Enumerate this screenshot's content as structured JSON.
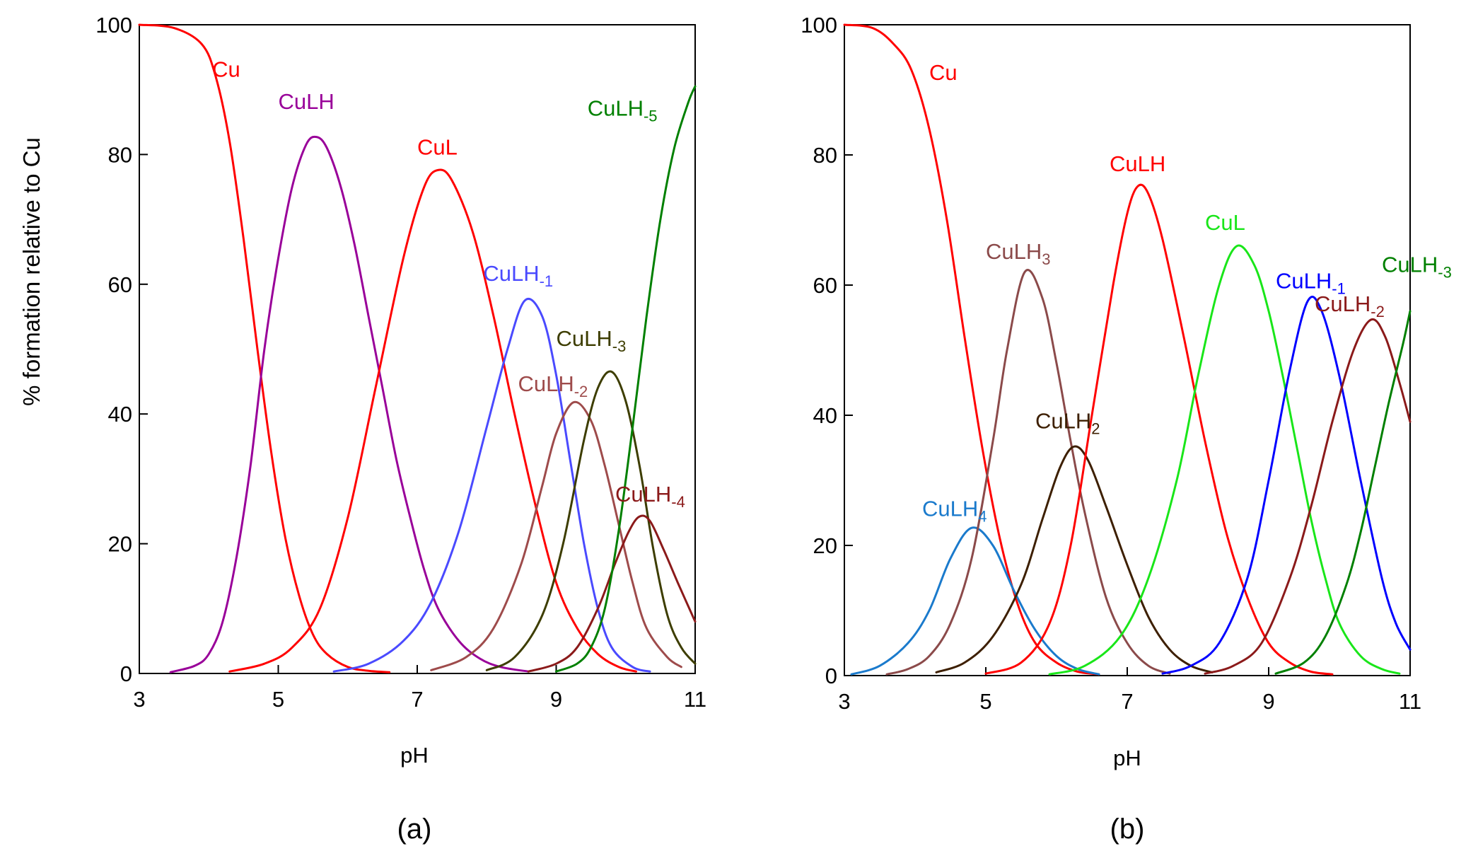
{
  "figure": {
    "y_axis_label": "% formation relative to Cu"
  },
  "chart_data": [
    {
      "type": "line",
      "panel_label": "(a)",
      "xlabel": "pH",
      "ylabel": "% formation relative to Cu",
      "xlim": [
        3,
        11
      ],
      "ylim": [
        0,
        100
      ],
      "xticks": [
        3,
        5,
        7,
        9,
        11
      ],
      "yticks": [
        0,
        20,
        40,
        60,
        80,
        100
      ],
      "grid": false,
      "series": [
        {
          "name": "Cu",
          "label": "Cu",
          "sub": "",
          "color": "#ff0000",
          "label_pos": [
            4.05,
            92
          ],
          "x": [
            3.0,
            3.5,
            3.9,
            4.1,
            4.3,
            4.5,
            4.7,
            4.9,
            5.1,
            5.3,
            5.5,
            5.7,
            6.0,
            6.3,
            6.6
          ],
          "y": [
            100,
            99.5,
            97,
            92,
            82,
            67,
            50,
            34,
            21,
            12,
            6,
            3,
            1,
            0.4,
            0.2
          ]
        },
        {
          "name": "CuLH",
          "label": "CuLH",
          "sub": "",
          "color": "#990099",
          "label_pos": [
            5.0,
            87
          ],
          "x": [
            3.45,
            3.8,
            4.0,
            4.2,
            4.4,
            4.6,
            4.8,
            5.0,
            5.2,
            5.4,
            5.55,
            5.7,
            5.9,
            6.1,
            6.3,
            6.5,
            6.7,
            6.9,
            7.1,
            7.3,
            7.6,
            7.9,
            8.2,
            8.6
          ],
          "y": [
            0.2,
            1.2,
            3,
            8,
            18,
            32,
            50,
            64,
            75,
            81.5,
            82.7,
            81,
            75,
            66,
            55,
            44,
            33,
            24,
            16,
            10,
            5,
            2.3,
            1,
            0.3
          ]
        },
        {
          "name": "CuL",
          "label": "CuL",
          "sub": "",
          "color": "#ff0000",
          "label_pos": [
            7.0,
            80
          ],
          "x": [
            4.3,
            4.8,
            5.2,
            5.6,
            6.0,
            6.4,
            6.8,
            7.1,
            7.3,
            7.5,
            7.8,
            8.1,
            8.4,
            8.7,
            9.0,
            9.3,
            9.6,
            9.9,
            10.15
          ],
          "y": [
            0.3,
            1.5,
            4,
            10,
            24,
            44,
            64,
            75,
            77.6,
            76,
            68,
            55,
            40,
            26,
            14,
            7,
            3,
            1,
            0.3
          ]
        },
        {
          "name": "CuLH-1",
          "label": "CuLH",
          "sub": "-1",
          "color": "#4a4aff",
          "label_pos": [
            7.95,
            60.5
          ],
          "x": [
            5.8,
            6.3,
            6.8,
            7.2,
            7.6,
            8.0,
            8.3,
            8.55,
            8.8,
            9.0,
            9.2,
            9.4,
            9.6,
            9.8,
            10.1,
            10.35
          ],
          "y": [
            0.3,
            1.5,
            5,
            11,
            22,
            38,
            50,
            57.5,
            55,
            46,
            33,
            20,
            10,
            4,
            1,
            0.3
          ]
        },
        {
          "name": "CuLH-2",
          "label": "CuLH",
          "sub": "-2",
          "color": "#9e4b4b",
          "label_pos": [
            8.45,
            43.5
          ],
          "x": [
            7.2,
            7.7,
            8.1,
            8.5,
            8.8,
            9.0,
            9.25,
            9.5,
            9.7,
            9.9,
            10.1,
            10.3,
            10.6,
            10.8
          ],
          "y": [
            0.5,
            2.5,
            7,
            17,
            29,
            37,
            41.8,
            39,
            32,
            23,
            14,
            7,
            2.5,
            1
          ]
        },
        {
          "name": "CuLH-3",
          "label": "CuLH",
          "sub": "-3",
          "color": "#3d3d00",
          "label_pos": [
            9.0,
            50.5
          ],
          "x": [
            8.0,
            8.4,
            8.8,
            9.1,
            9.4,
            9.6,
            9.8,
            10.0,
            10.2,
            10.4,
            10.6,
            10.8,
            11.0
          ],
          "y": [
            0.5,
            2.5,
            9,
            20,
            36,
            44,
            46.5,
            42,
            32,
            19,
            9,
            4,
            1.5
          ]
        },
        {
          "name": "CuLH-4",
          "label": "CuLH",
          "sub": "-4",
          "color": "#8b1a1a",
          "label_pos": [
            9.85,
            26.5
          ],
          "x": [
            8.6,
            9.0,
            9.3,
            9.6,
            9.85,
            10.05,
            10.2,
            10.35,
            10.55,
            10.75,
            11.0
          ],
          "y": [
            0.3,
            1.5,
            4,
            10,
            17,
            22,
            24.2,
            23.5,
            19,
            14,
            8
          ]
        },
        {
          "name": "CuLH-5",
          "label": "CuLH",
          "sub": "-5",
          "color": "#008000",
          "label_pos": [
            9.45,
            86
          ],
          "x": [
            9.0,
            9.3,
            9.5,
            9.7,
            9.9,
            10.1,
            10.3,
            10.5,
            10.7,
            10.9,
            11.0
          ],
          "y": [
            0.3,
            1.5,
            4,
            10,
            22,
            38,
            55,
            70,
            81,
            88,
            90.5
          ]
        }
      ]
    },
    {
      "type": "line",
      "panel_label": "(b)",
      "xlabel": "pH",
      "ylabel": "",
      "xlim": [
        3,
        11
      ],
      "ylim": [
        0,
        100
      ],
      "xticks": [
        3,
        5,
        7,
        9,
        11
      ],
      "yticks": [
        0,
        20,
        40,
        60,
        80,
        100
      ],
      "grid": false,
      "series": [
        {
          "name": "Cu",
          "label": "Cu",
          "sub": "",
          "color": "#ff0000",
          "label_pos": [
            4.2,
            91.5
          ],
          "x": [
            3.0,
            3.4,
            3.7,
            3.95,
            4.2,
            4.45,
            4.7,
            4.95,
            5.2,
            5.45,
            5.7,
            6.0,
            6.3,
            6.6
          ],
          "y": [
            100,
            99.5,
            97,
            93,
            84,
            70,
            52,
            35,
            21,
            11,
            5,
            2,
            0.6,
            0.2
          ]
        },
        {
          "name": "CuLH4",
          "label": "CuLH",
          "sub": "4",
          "color": "#1a7acc",
          "label_pos": [
            4.1,
            24.5
          ],
          "x": [
            3.1,
            3.5,
            3.9,
            4.2,
            4.5,
            4.8,
            5.1,
            5.4,
            5.7,
            6.0,
            6.3,
            6.6
          ],
          "y": [
            0.2,
            1.5,
            5,
            10,
            18,
            22.7,
            20,
            13,
            7,
            3,
            1,
            0.2
          ]
        },
        {
          "name": "CuLH3",
          "label": "CuLH",
          "sub": "3",
          "color": "#8b4a4a",
          "label_pos": [
            5.0,
            64
          ],
          "x": [
            3.6,
            3.9,
            4.2,
            4.5,
            4.8,
            5.1,
            5.3,
            5.55,
            5.8,
            6.0,
            6.2,
            6.4,
            6.7,
            7.0,
            7.3,
            7.6
          ],
          "y": [
            0.2,
            1,
            3,
            8,
            18,
            36,
            50,
            62,
            58,
            48,
            36,
            25,
            12,
            5,
            1.5,
            0.3
          ]
        },
        {
          "name": "CuLH2",
          "label": "CuLH",
          "sub": "2",
          "color": "#3d1f00",
          "label_pos": [
            5.7,
            38
          ],
          "x": [
            4.3,
            4.7,
            5.1,
            5.5,
            5.8,
            6.05,
            6.25,
            6.45,
            6.7,
            7.0,
            7.3,
            7.6,
            7.9,
            8.2
          ],
          "y": [
            0.5,
            2,
            6,
            14,
            24,
            32,
            35.2,
            33,
            26,
            17,
            9,
            4,
            1.5,
            0.5
          ]
        },
        {
          "name": "CuLH",
          "label": "CuLH",
          "sub": "",
          "color": "#ff0000",
          "label_pos": [
            6.75,
            77.5
          ],
          "x": [
            5.0,
            5.5,
            5.9,
            6.2,
            6.5,
            6.8,
            7.0,
            7.15,
            7.3,
            7.5,
            7.8,
            8.1,
            8.4,
            8.7,
            9.0,
            9.3,
            9.6,
            9.9
          ],
          "y": [
            0.3,
            2,
            8,
            20,
            40,
            60,
            71,
            75.2,
            74,
            67,
            52,
            36,
            22,
            12,
            5,
            2,
            0.6,
            0.2
          ]
        },
        {
          "name": "CuL",
          "label": "CuL",
          "sub": "",
          "color": "#19e619",
          "label_pos": [
            8.1,
            68.5
          ],
          "x": [
            5.9,
            6.4,
            6.9,
            7.3,
            7.7,
            8.0,
            8.3,
            8.55,
            8.8,
            9.0,
            9.2,
            9.4,
            9.6,
            9.8,
            10.0,
            10.3,
            10.6,
            10.85
          ],
          "y": [
            0.2,
            1.5,
            6,
            15,
            30,
            46,
            60,
            66,
            63,
            56,
            46,
            35,
            24,
            15,
            8,
            3,
            1,
            0.3
          ]
        },
        {
          "name": "CuLH-1",
          "label": "CuLH",
          "sub": "-1",
          "color": "#0000ff",
          "label_pos": [
            9.1,
            59.5
          ],
          "x": [
            7.5,
            7.9,
            8.3,
            8.7,
            9.0,
            9.3,
            9.55,
            9.75,
            10.0,
            10.3,
            10.6,
            10.8,
            11.0
          ],
          "y": [
            0.3,
            1.5,
            5,
            15,
            30,
            47,
            57.5,
            56,
            46,
            30,
            15,
            8,
            4
          ]
        },
        {
          "name": "CuLH-2",
          "label": "CuLH",
          "sub": "-2",
          "color": "#8b1a1a",
          "label_pos": [
            9.65,
            56
          ],
          "x": [
            8.1,
            8.5,
            8.9,
            9.3,
            9.6,
            9.9,
            10.2,
            10.45,
            10.65,
            10.85,
            11.0
          ],
          "y": [
            0.3,
            1.5,
            5,
            15,
            26,
            39,
            50,
            54.7,
            52,
            45,
            39
          ]
        },
        {
          "name": "CuLH-3",
          "label": "CuLH",
          "sub": "-3",
          "color": "#008000",
          "label_pos": [
            10.6,
            62
          ],
          "x": [
            9.1,
            9.5,
            9.8,
            10.1,
            10.3,
            10.5,
            10.7,
            10.9,
            11.0
          ],
          "y": [
            0.3,
            2,
            6,
            14,
            22,
            32,
            42,
            51,
            56
          ]
        }
      ]
    }
  ]
}
